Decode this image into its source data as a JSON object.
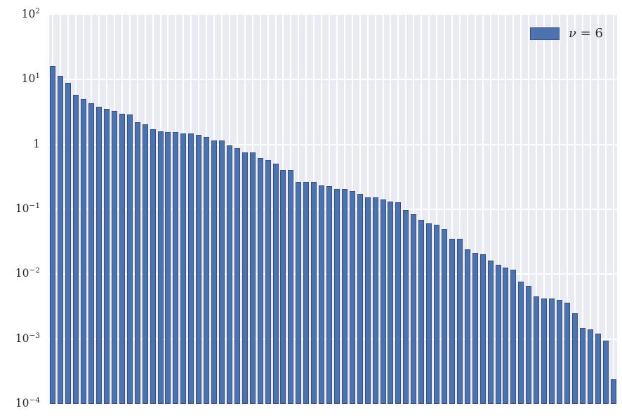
{
  "chart_data": {
    "type": "bar",
    "title": "",
    "xlabel": "",
    "ylabel": "",
    "yscale": "log",
    "ylim": [
      0.0001,
      100
    ],
    "grid": true,
    "n_bars": 74,
    "values": [
      16.0,
      11.5,
      9.0,
      5.8,
      5.0,
      4.3,
      3.8,
      3.5,
      3.25,
      3.0,
      2.9,
      2.2,
      2.04,
      1.7,
      1.6,
      1.55,
      1.55,
      1.49,
      1.49,
      1.4,
      1.32,
      1.14,
      1.14,
      0.96,
      0.87,
      0.75,
      0.75,
      0.62,
      0.58,
      0.5,
      0.4,
      0.4,
      0.264,
      0.263,
      0.262,
      0.231,
      0.23,
      0.206,
      0.204,
      0.189,
      0.171,
      0.153,
      0.151,
      0.143,
      0.13,
      0.128,
      0.0966,
      0.083,
      0.0687,
      0.0612,
      0.0582,
      0.05,
      0.0353,
      0.035,
      0.0241,
      0.0214,
      0.0202,
      0.016,
      0.014,
      0.0127,
      0.0116,
      0.0076,
      0.0066,
      0.0045,
      0.00425,
      0.00422,
      0.004,
      0.0036,
      0.0025,
      0.00147,
      0.0014,
      0.0012,
      0.00095,
      0.00024
    ],
    "yticks": [
      {
        "base": "10",
        "exp": "2",
        "value": 100
      },
      {
        "base": "10",
        "exp": "1",
        "value": 10
      },
      {
        "base": "1",
        "exp": "",
        "value": 1
      },
      {
        "base": "10",
        "exp": "−1",
        "value": 0.1
      },
      {
        "base": "10",
        "exp": "−2",
        "value": 0.01
      },
      {
        "base": "10",
        "exp": "−3",
        "value": 0.001
      },
      {
        "base": "10",
        "exp": "−4",
        "value": 0.0001
      }
    ],
    "legend": {
      "position": "upper right",
      "entries": [
        {
          "symbol": "ν",
          "rest": " = 6",
          "label": "ν = 6"
        }
      ]
    },
    "colors": {
      "bar_fill": "#4C72B0",
      "bar_edge": "#36517E",
      "plot_bg": "#EAEAF2",
      "gridline": "#FFFFFF",
      "tick_text": "#262626",
      "figure_bg": "#FFFFFF"
    }
  }
}
